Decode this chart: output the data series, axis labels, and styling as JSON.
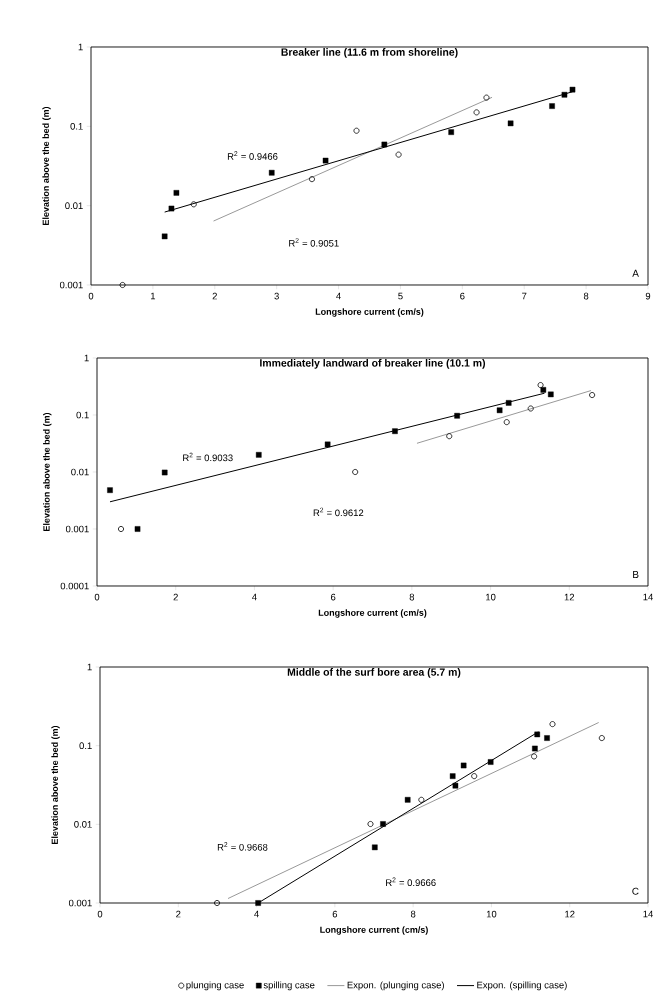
{
  "chart_data": [
    {
      "type": "scatter",
      "title": "Breaker line (11.6 m from shoreline)",
      "xlabel": "Longshore current (cm/s)",
      "ylabel": "Elevation above the bed (m)",
      "log": "y",
      "xlim": [
        0,
        9
      ],
      "xticks": [
        0,
        1,
        2,
        3,
        4,
        5,
        6,
        7,
        8,
        9
      ],
      "ylim": [
        0.001,
        1
      ],
      "yticks": [
        0.001,
        0.01,
        0.1,
        1
      ],
      "series": [
        {
          "marker": "circle",
          "color": "#000000",
          "x": [
            0.51,
            1.66,
            3.57,
            4.29,
            4.97,
            6.23,
            6.39
          ],
          "values": [
            0.001,
            0.0104,
            0.0216,
            0.088,
            0.044,
            0.15,
            0.23
          ]
        },
        {
          "marker": "square",
          "color": "#000000",
          "x": [
            1.19,
            1.3,
            1.38,
            2.92,
            3.79,
            4.74,
            5.82,
            6.78,
            7.45,
            7.65,
            7.78
          ],
          "values": [
            0.0041,
            0.0092,
            0.0145,
            0.026,
            0.037,
            0.059,
            0.0845,
            0.109,
            0.18,
            0.25,
            0.29
          ]
        },
        {
          "type": "line",
          "marker": "none",
          "color": "#999999",
          "x": [
            1.98,
            6.48
          ],
          "values": [
            0.0064,
            0.232
          ]
        },
        {
          "type": "line",
          "marker": "none",
          "color": "#000000",
          "x": [
            1.19,
            7.78
          ],
          "values": [
            0.0083,
            0.273
          ]
        }
      ],
      "annotations": [
        "R$^{2}$ = 0.9466",
        "R$^{2}$ = 0.9051",
        "A"
      ]
    },
    {
      "type": "scatter",
      "title": "Immediately landward of breaker line (10.1 m)",
      "xlabel": "Longshore current (cm/s)",
      "ylabel": "Elevation above the bed (m)",
      "log": "y",
      "xlim": [
        0,
        14
      ],
      "xticks": [
        0,
        2,
        4,
        6,
        8,
        10,
        12,
        14
      ],
      "ylim": [
        0.0001,
        1
      ],
      "yticks": [
        0.0001,
        0.001,
        0.01,
        0.1,
        1
      ],
      "series": [
        {
          "marker": "circle",
          "color": "#000000",
          "x": [
            0.61,
            6.56,
            8.95,
            10.41,
            11.02,
            11.27,
            12.58
          ],
          "values": [
            0.001,
            0.01,
            0.0425,
            0.075,
            0.13,
            0.335,
            0.224
          ]
        },
        {
          "marker": "square",
          "color": "#000000",
          "x": [
            0.33,
            1.03,
            1.72,
            4.11,
            5.86,
            7.57,
            9.15,
            10.23,
            10.46,
            11.34,
            11.53
          ],
          "values": [
            0.0048,
            0.001,
            0.0098,
            0.02,
            0.0305,
            0.052,
            0.097,
            0.121,
            0.163,
            0.276,
            0.23
          ]
        },
        {
          "type": "line",
          "marker": "none",
          "color": "#999999",
          "x": [
            8.13,
            12.55
          ],
          "values": [
            0.0319,
            0.268
          ]
        },
        {
          "type": "line",
          "marker": "none",
          "color": "#000000",
          "x": [
            0.33,
            11.37
          ],
          "values": [
            0.003,
            0.241
          ]
        }
      ],
      "annotations": [
        "R$^{2}$ = 0.9033",
        "R$^{2}$ = 0.9612",
        "B"
      ]
    },
    {
      "type": "scatter",
      "title": "Middle of the surf bore area (5.7 m)",
      "xlabel": "Longshore current (cm/s)",
      "ylabel": "Elevation above the bed (m)",
      "log": "y",
      "legend": "bottom",
      "xlim": [
        0,
        14
      ],
      "xticks": [
        0,
        2,
        4,
        6,
        8,
        10,
        12,
        14
      ],
      "ylim": [
        0.001,
        1
      ],
      "yticks": [
        0.001,
        0.01,
        0.1,
        1
      ],
      "series": [
        {
          "name": "plunging case",
          "marker": "circle",
          "color": "#000000",
          "x": [
            2.99,
            6.91,
            8.21,
            9.56,
            11.09,
            11.56,
            12.82
          ],
          "values": [
            0.001,
            0.0101,
            0.0205,
            0.041,
            0.073,
            0.188,
            0.125
          ]
        },
        {
          "name": "spilling case",
          "marker": "square",
          "color": "#000000",
          "x": [
            4.04,
            7.02,
            7.23,
            7.86,
            9.01,
            9.08,
            9.29,
            9.98,
            11.11,
            11.17,
            11.42
          ],
          "values": [
            0.001,
            0.0051,
            0.0101,
            0.0205,
            0.041,
            0.031,
            0.056,
            0.062,
            0.092,
            0.139,
            0.125
          ]
        },
        {
          "name": "Expon. (plunging case)",
          "type": "line",
          "marker": "none",
          "color": "#999999",
          "x": [
            3.27,
            12.74
          ],
          "values": [
            0.00114,
            0.197
          ]
        },
        {
          "name": "Expon. (spilling case)",
          "type": "line",
          "marker": "none",
          "color": "#000000",
          "x": [
            4.04,
            11.2
          ],
          "values": [
            0.001,
            0.15
          ]
        }
      ],
      "annotations": [
        "R$^{2}$ = 0.9668",
        "R$^{2}$ = 0.9666",
        "C"
      ]
    }
  ]
}
